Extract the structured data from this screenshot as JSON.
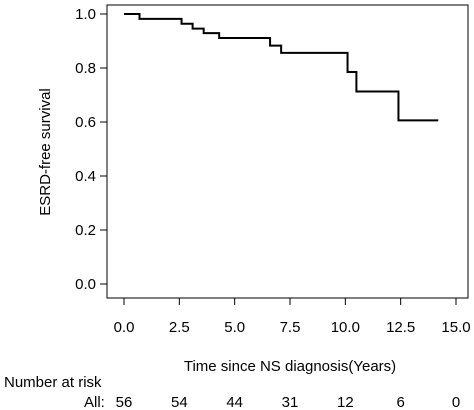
{
  "chart_data": {
    "type": "line",
    "subtype": "kaplan-meier step",
    "title": "",
    "xlabel": "Time since NS diagnosis(Years)",
    "ylabel": "ESRD-free survival",
    "xlim": [
      0,
      15
    ],
    "ylim": [
      0,
      1
    ],
    "x_ticks": [
      "0.0",
      "2.5",
      "5.0",
      "7.5",
      "10.0",
      "12.5",
      "15.0"
    ],
    "y_ticks": [
      "0.0",
      "0.2",
      "0.4",
      "0.6",
      "0.8",
      "1.0"
    ],
    "grid": false,
    "series": [
      {
        "points": [
          {
            "x": 0.0,
            "y": 1.0
          },
          {
            "x": 0.7,
            "y": 0.982
          },
          {
            "x": 2.6,
            "y": 0.964
          },
          {
            "x": 3.1,
            "y": 0.946
          },
          {
            "x": 3.6,
            "y": 0.929
          },
          {
            "x": 4.3,
            "y": 0.911
          },
          {
            "x": 6.6,
            "y": 0.883
          },
          {
            "x": 7.1,
            "y": 0.856
          },
          {
            "x": 10.1,
            "y": 0.785
          },
          {
            "x": 10.5,
            "y": 0.713
          },
          {
            "x": 12.4,
            "y": 0.606
          },
          {
            "x": 14.2,
            "y": 0.606
          }
        ]
      }
    ],
    "risk_table": {
      "title": "Number at risk",
      "row_label": "All:",
      "values": [
        "56",
        "54",
        "44",
        "31",
        "12",
        "6",
        "0"
      ]
    }
  }
}
